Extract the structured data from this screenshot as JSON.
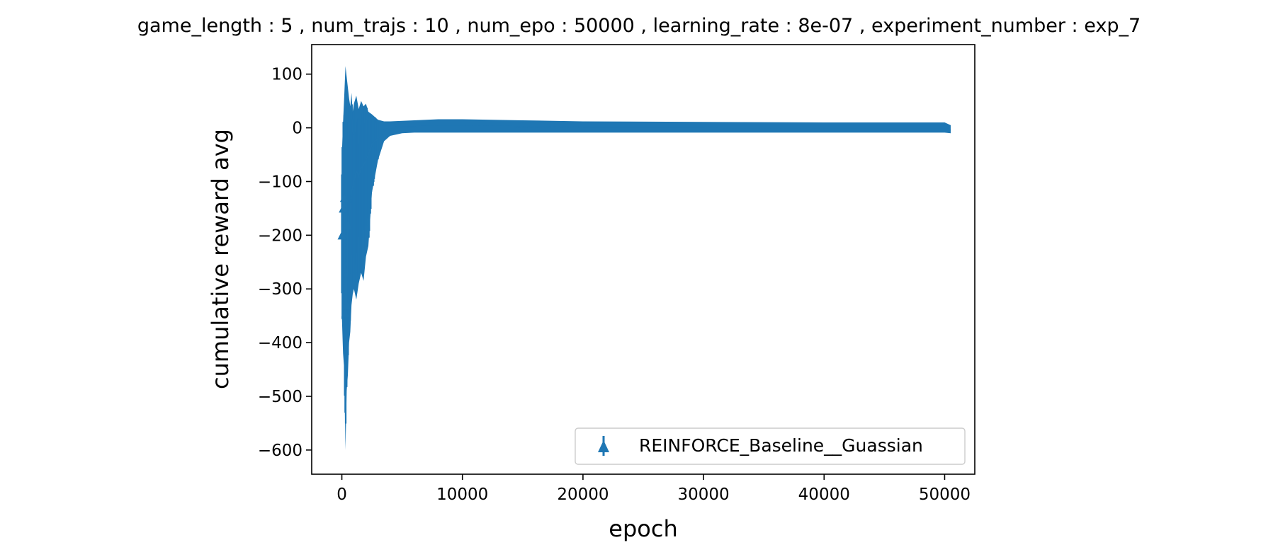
{
  "chart_data": {
    "type": "line",
    "title": "game_length : 5 , num_trajs : 10 , num_epo : 50000 , learning_rate : 8e-07 , experiment_number : exp_7",
    "xlabel": "epoch",
    "ylabel": "cumulative reward avg",
    "xlim": [
      -2500,
      52500
    ],
    "ylim": [
      -645,
      155
    ],
    "xticks": [
      0,
      10000,
      20000,
      30000,
      40000,
      50000
    ],
    "yticks": [
      -600,
      -500,
      -400,
      -300,
      -200,
      -100,
      0,
      100
    ],
    "grid": false,
    "legend_position": "lower-right",
    "series_color": "#1f77b4",
    "series": [
      {
        "name": "REINFORCE_Baseline__Guassian",
        "error_bars": true,
        "x": [
          0,
          100,
          200,
          300,
          400,
          500,
          600,
          700,
          800,
          900,
          1000,
          1200,
          1400,
          1600,
          1800,
          2000,
          2200,
          2500,
          3000,
          3500,
          4000,
          5000,
          6000,
          8000,
          10000,
          15000,
          20000,
          30000,
          40000,
          45000,
          50000,
          50500
        ],
        "upper": [
          -50,
          10,
          60,
          115,
          95,
          75,
          55,
          40,
          65,
          30,
          45,
          60,
          35,
          50,
          40,
          45,
          30,
          25,
          15,
          12,
          12,
          13,
          14,
          16,
          16,
          14,
          12,
          11,
          10,
          10,
          10,
          5
        ],
        "lower": [
          -350,
          -420,
          -450,
          -600,
          -490,
          -460,
          -400,
          -380,
          -330,
          -310,
          -300,
          -320,
          -290,
          -270,
          -285,
          -240,
          -220,
          -120,
          -60,
          -25,
          -15,
          -10,
          -9,
          -9,
          -9,
          -9,
          -9,
          -9,
          -9,
          -9,
          -9,
          -10
        ],
        "mean": [
          -200,
          -150,
          -130,
          -345,
          -330,
          -180,
          -160,
          -150,
          -120,
          -110,
          -100,
          -80,
          -90,
          -75,
          -70,
          -60,
          -50,
          -30,
          -20,
          -5,
          0,
          2,
          2,
          3,
          3,
          2,
          1,
          1,
          0,
          0,
          0,
          -5
        ]
      }
    ]
  }
}
